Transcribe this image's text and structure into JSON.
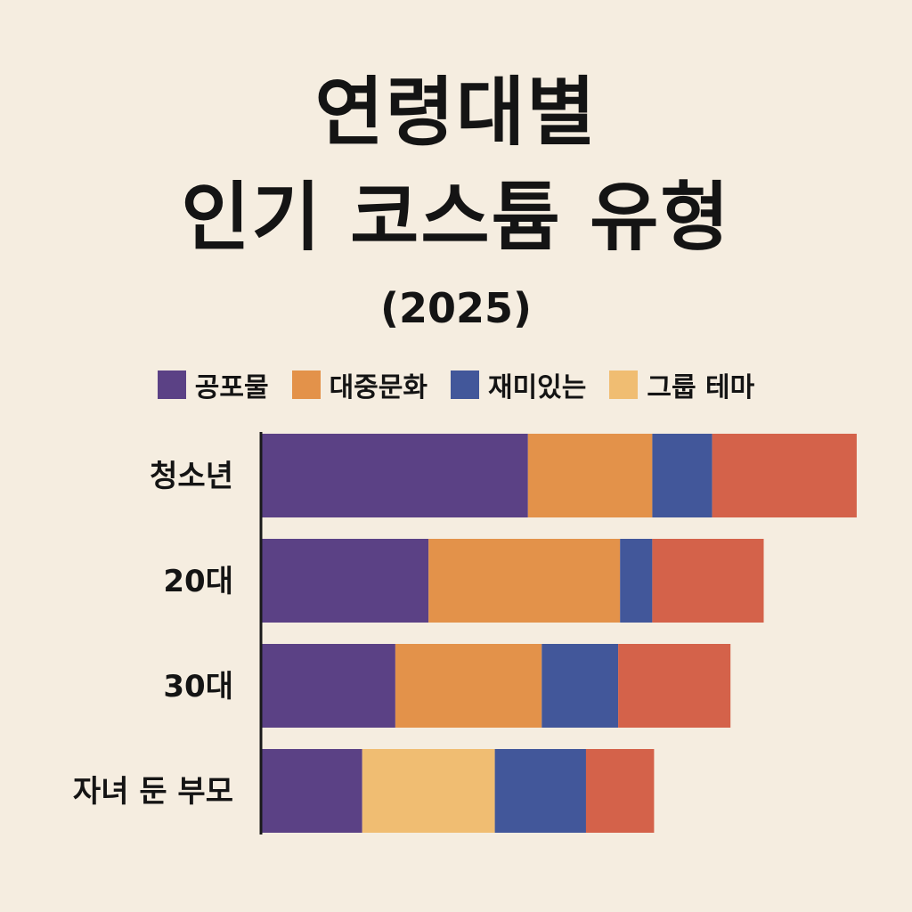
{
  "chart_data": {
    "type": "bar",
    "orientation": "horizontal",
    "stacked": true,
    "title_line1": "연령대별",
    "title_line2": "인기 코스튬 유형",
    "subtitle": "(2025)",
    "categories": [
      "청소년",
      "20대",
      "30대",
      "자녀 둔 부모"
    ],
    "legend": [
      {
        "name": "공포물",
        "color": "#5b4185"
      },
      {
        "name": "대중문화",
        "color": "#e3924a"
      },
      {
        "name": "재미있는",
        "color": "#42579a"
      },
      {
        "name": "그룹 테마",
        "color": "#f0bd72"
      }
    ],
    "segments": [
      [
        {
          "value": 29,
          "color": "#5b4185"
        },
        {
          "value": 13.5,
          "color": "#e3924a"
        },
        {
          "value": 6.5,
          "color": "#42579a"
        },
        {
          "value": 15.7,
          "color": "#d4624a"
        }
      ],
      [
        {
          "value": 18.2,
          "color": "#5b4185"
        },
        {
          "value": 20.8,
          "color": "#e3924a"
        },
        {
          "value": 3.5,
          "color": "#42579a"
        },
        {
          "value": 12.1,
          "color": "#d4624a"
        }
      ],
      [
        {
          "value": 14.6,
          "color": "#5b4185"
        },
        {
          "value": 15.9,
          "color": "#e3924a"
        },
        {
          "value": 8.3,
          "color": "#42579a"
        },
        {
          "value": 12.2,
          "color": "#d4624a"
        }
      ],
      [
        {
          "value": 11,
          "color": "#5b4185"
        },
        {
          "value": 14.4,
          "color": "#f0bd72"
        },
        {
          "value": 9.9,
          "color": "#42579a"
        },
        {
          "value": 7.4,
          "color": "#d4624a"
        }
      ]
    ],
    "x_range": [
      0,
      65
    ],
    "grid": false,
    "legend_position": "top"
  }
}
